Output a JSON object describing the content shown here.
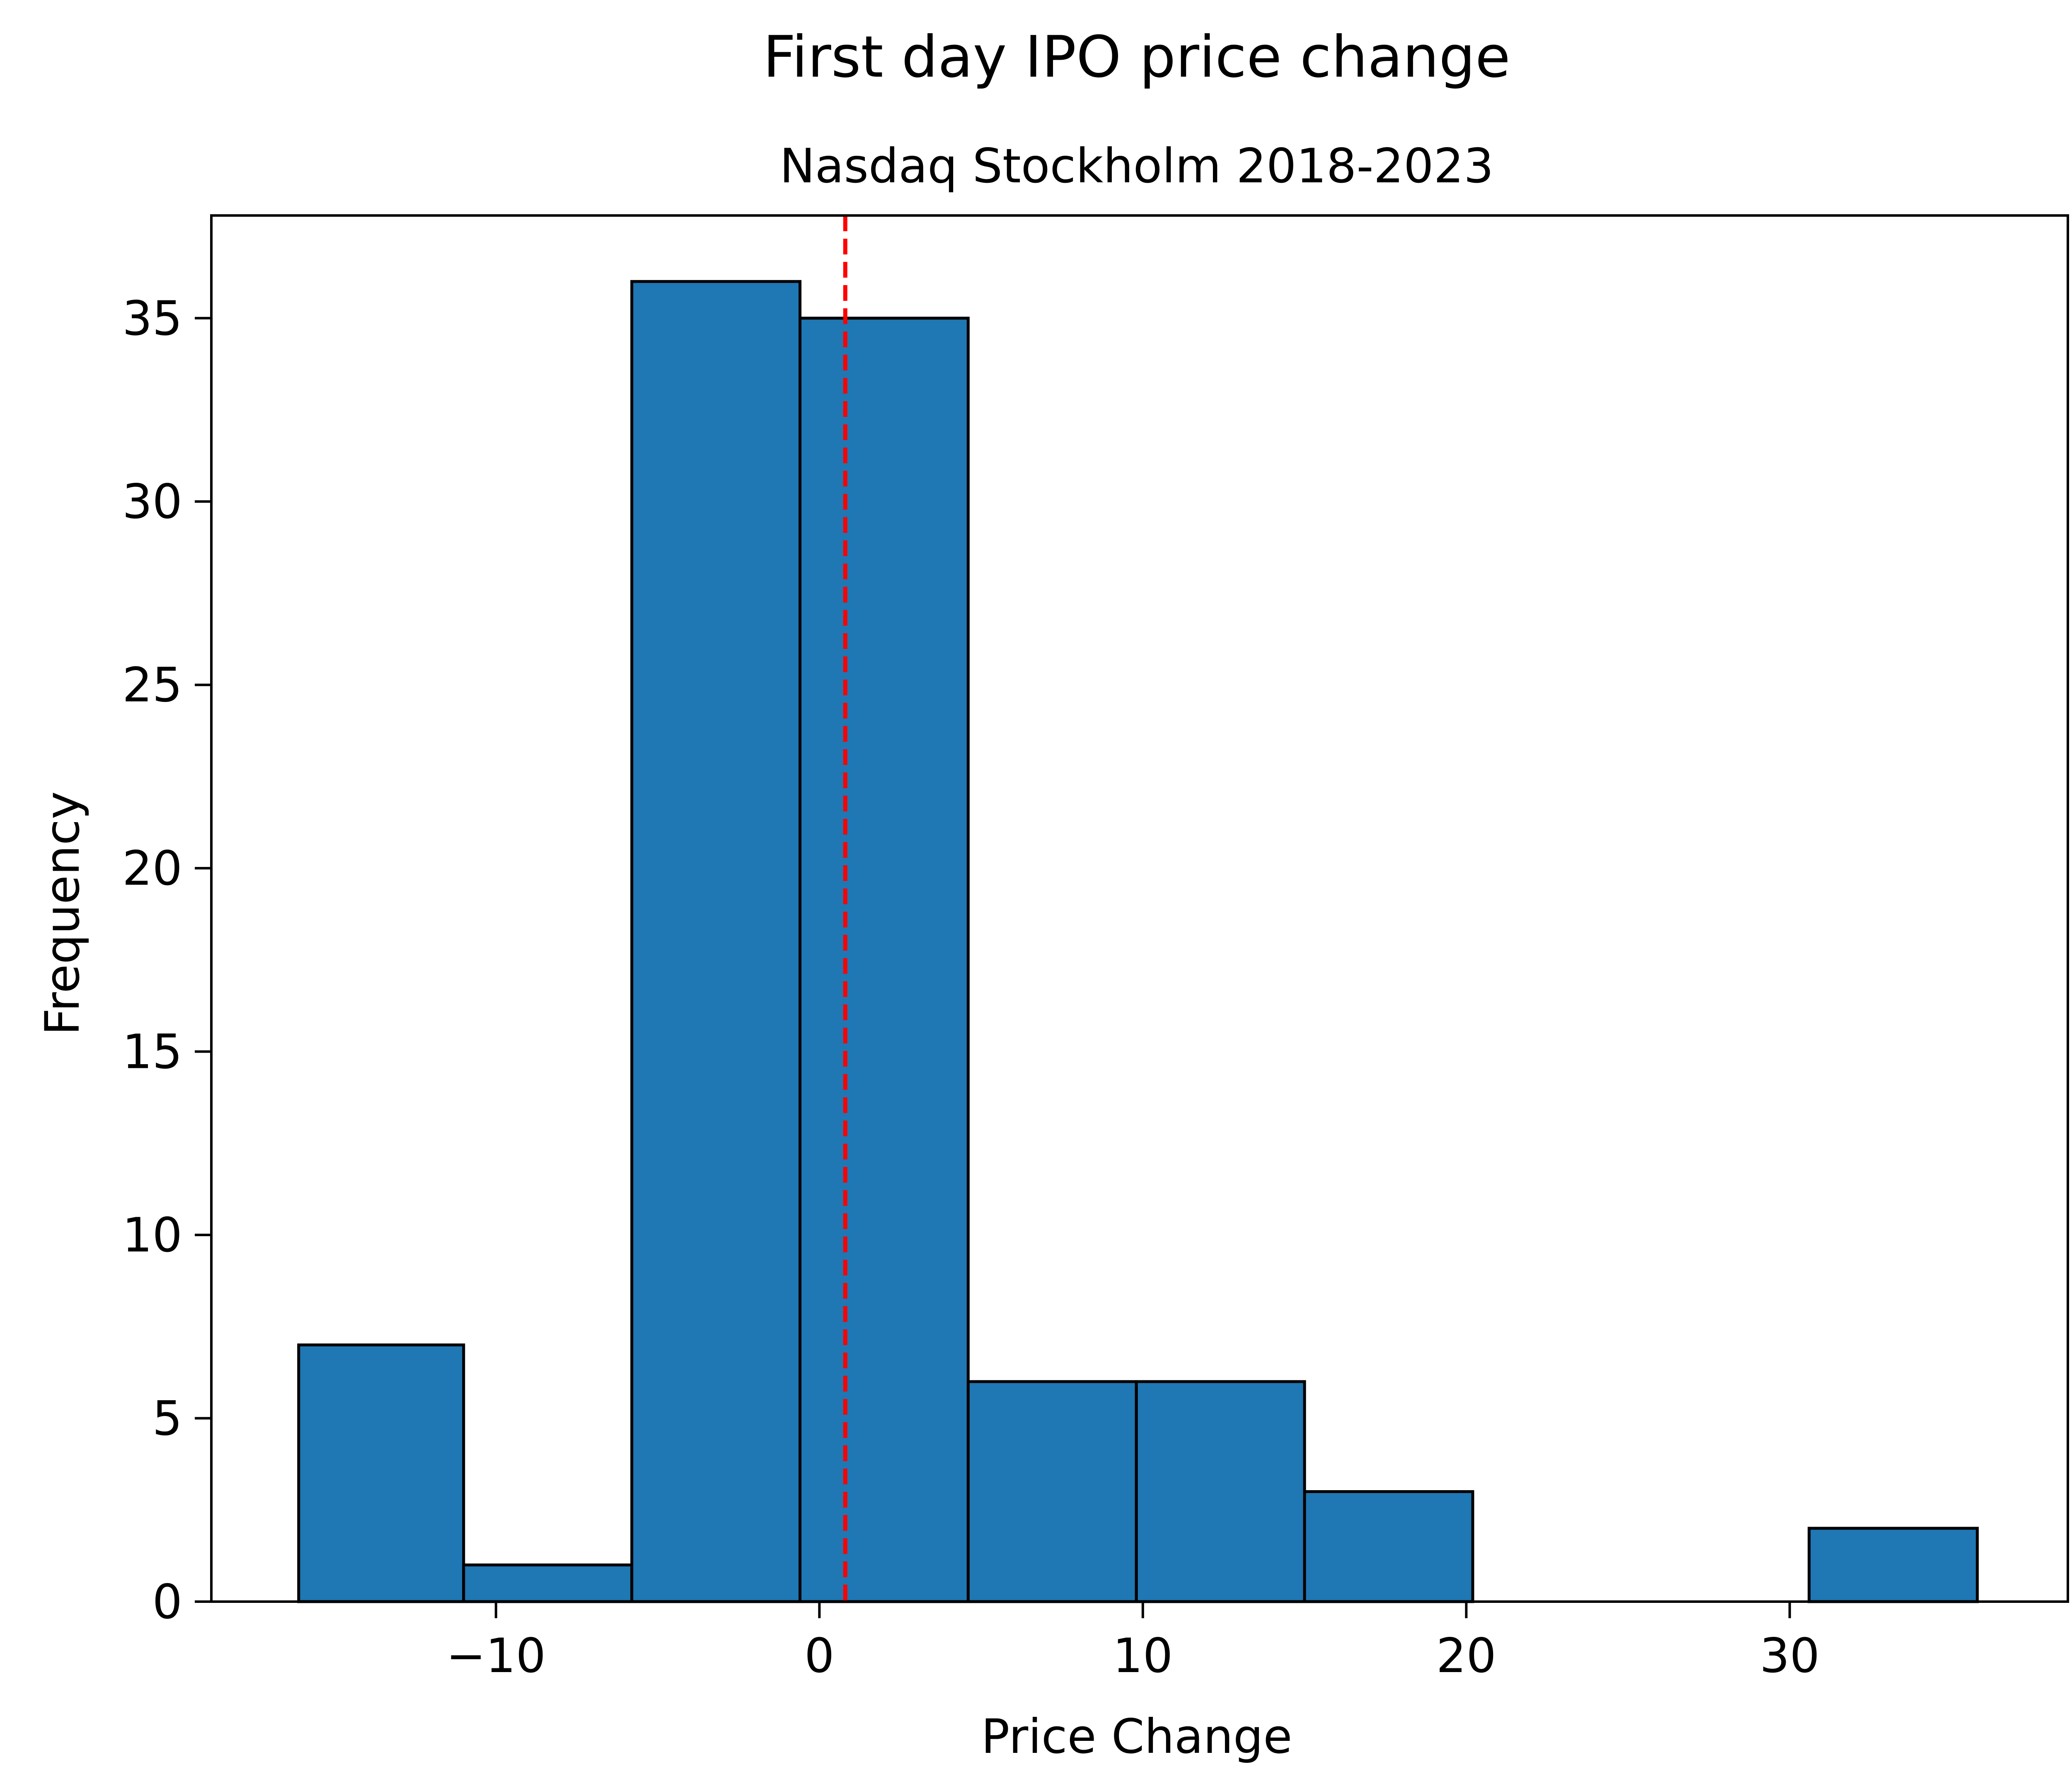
{
  "chart_data": {
    "type": "bar",
    "title": "First day IPO price change",
    "subtitle": "Nasdaq Stockholm 2018-2023",
    "xlabel": "Price Change",
    "ylabel": "Frequency",
    "xlim": [
      -18.8,
      38.6
    ],
    "ylim": [
      0,
      37.8
    ],
    "x_ticks": [
      -10,
      0,
      10,
      20,
      30
    ],
    "x_tick_labels": [
      "−10",
      "0",
      "10",
      "20",
      "30"
    ],
    "y_ticks": [
      0,
      5,
      10,
      15,
      20,
      25,
      30,
      35
    ],
    "y_tick_labels": [
      "0",
      "5",
      "10",
      "15",
      "20",
      "25",
      "30",
      "35"
    ],
    "bins": [
      {
        "x0": -16.1,
        "x1": -11.0,
        "count": 7
      },
      {
        "x0": -11.0,
        "x1": -5.8,
        "count": 1
      },
      {
        "x0": -5.8,
        "x1": -0.6,
        "count": 36
      },
      {
        "x0": -0.6,
        "x1": 4.6,
        "count": 35
      },
      {
        "x0": 4.6,
        "x1": 9.8,
        "count": 6
      },
      {
        "x0": 9.8,
        "x1": 15.0,
        "count": 6
      },
      {
        "x0": 15.0,
        "x1": 20.2,
        "count": 3
      },
      {
        "x0": 20.2,
        "x1": 25.4,
        "count": 0
      },
      {
        "x0": 25.4,
        "x1": 30.6,
        "count": 0
      },
      {
        "x0": 30.6,
        "x1": 35.8,
        "count": 2
      }
    ],
    "mean_line": {
      "x": 0.8,
      "color": "#ff0000",
      "style": "dashed"
    },
    "bar_color": "#1f77b4",
    "edge_color": "#000000",
    "grid": false,
    "legend": "none"
  }
}
